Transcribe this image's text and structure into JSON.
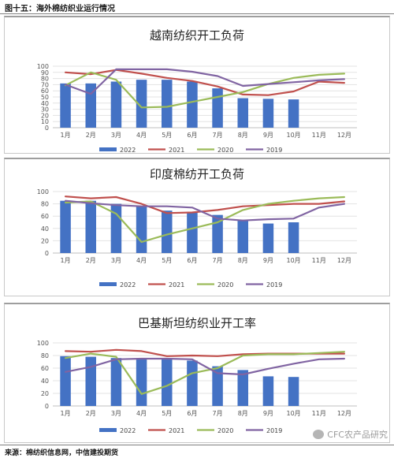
{
  "figure_title": "图十五：海外棉纺织业运行情况",
  "source": "来源：棉纺织信息网，中信建投期货",
  "watermark": "CFC农产品研究",
  "colors": {
    "2022": "#4472c4",
    "2021": "#c0504d",
    "2020": "#9bbb59",
    "2019": "#8064a2"
  },
  "chart_data": [
    {
      "type": "bar",
      "title": "越南纺织开工负荷",
      "categories": [
        "1月",
        "2月",
        "3月",
        "4月",
        "5月",
        "6月",
        "7月",
        "8月",
        "9月",
        "10月",
        "11月",
        "12月"
      ],
      "ylim": [
        0,
        100
      ],
      "yticks": [
        0,
        10,
        20,
        30,
        40,
        50,
        60,
        70,
        80,
        90,
        100
      ],
      "legend_position": "bottom",
      "series": [
        {
          "name": "2022",
          "type": "bar",
          "values": [
            72,
            72,
            75,
            78,
            78,
            75,
            64,
            48,
            47,
            46,
            null,
            null
          ]
        },
        {
          "name": "2021",
          "type": "line",
          "values": [
            90,
            87,
            94,
            88,
            81,
            76,
            67,
            54,
            53,
            59,
            75,
            73
          ]
        },
        {
          "name": "2020",
          "type": "line",
          "values": [
            69,
            90,
            78,
            33,
            34,
            42,
            50,
            58,
            71,
            81,
            86,
            88
          ]
        },
        {
          "name": "2019",
          "type": "line",
          "values": [
            70,
            55,
            95,
            95,
            95,
            91,
            84,
            68,
            71,
            74,
            77,
            79
          ]
        }
      ]
    },
    {
      "type": "bar",
      "title": "印度棉纺开工负荷",
      "categories": [
        "1月",
        "2月",
        "3月",
        "4月",
        "5月",
        "6月",
        "7月",
        "8月",
        "9月",
        "10月",
        "11月",
        "12月"
      ],
      "ylim": [
        0,
        100
      ],
      "yticks": [
        0,
        20,
        40,
        60,
        80,
        100
      ],
      "legend_position": "bottom",
      "series": [
        {
          "name": "2022",
          "type": "bar",
          "values": [
            85,
            85,
            80,
            76,
            69,
            67,
            62,
            54,
            48,
            50,
            null,
            null
          ]
        },
        {
          "name": "2021",
          "type": "line",
          "values": [
            92,
            89,
            91,
            80,
            65,
            66,
            70,
            76,
            78,
            80,
            80,
            84
          ]
        },
        {
          "name": "2020",
          "type": "line",
          "values": [
            82,
            84,
            64,
            18,
            30,
            40,
            50,
            70,
            80,
            85,
            89,
            91
          ]
        },
        {
          "name": "2019",
          "type": "line",
          "values": [
            85,
            81,
            78,
            76,
            76,
            74,
            56,
            53,
            55,
            56,
            74,
            80
          ]
        }
      ]
    },
    {
      "type": "bar",
      "title": "巴基斯坦纺织业开工率",
      "categories": [
        "1月",
        "2月",
        "3月",
        "4月",
        "5月",
        "6月",
        "7月",
        "8月",
        "9月",
        "10月",
        "11月",
        "12月"
      ],
      "ylim": [
        0,
        100
      ],
      "yticks": [
        0,
        20,
        40,
        60,
        80,
        100
      ],
      "legend_position": "bottom",
      "series": [
        {
          "name": "2022",
          "type": "bar",
          "values": [
            79,
            78,
            76,
            75,
            74,
            72,
            63,
            57,
            47,
            46,
            null,
            null
          ]
        },
        {
          "name": "2021",
          "type": "line",
          "values": [
            87,
            86,
            89,
            87,
            79,
            80,
            79,
            82,
            83,
            83,
            83,
            83
          ]
        },
        {
          "name": "2020",
          "type": "line",
          "values": [
            76,
            83,
            78,
            19,
            32,
            52,
            60,
            80,
            82,
            82,
            84,
            86
          ]
        },
        {
          "name": "2019",
          "type": "line",
          "values": [
            54,
            62,
            74,
            75,
            75,
            74,
            52,
            50,
            59,
            67,
            74,
            75
          ]
        }
      ]
    }
  ]
}
